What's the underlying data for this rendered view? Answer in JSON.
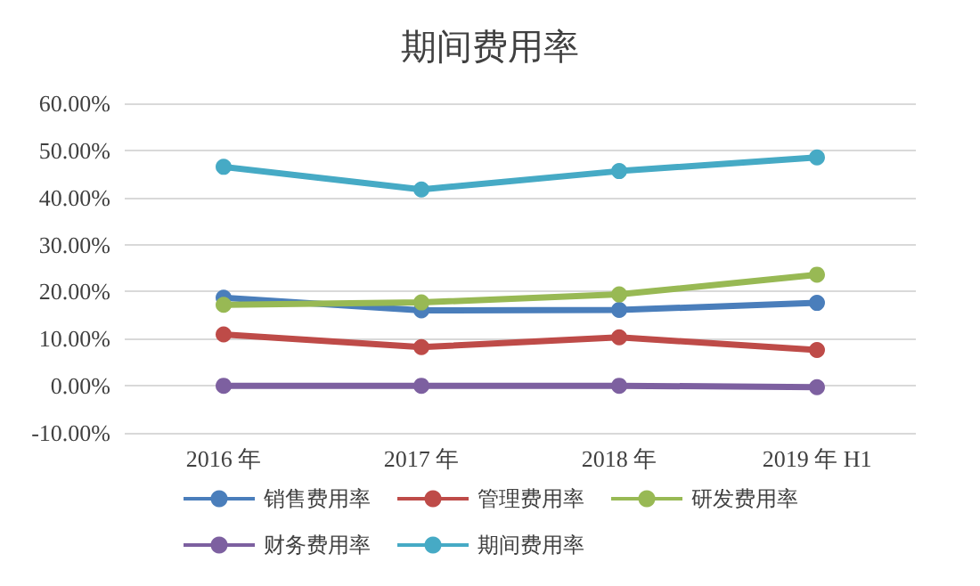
{
  "chart_data": {
    "type": "line",
    "title": "期间费用率",
    "categories": [
      "2016 年",
      "2017 年",
      "2018 年",
      "2019 年 H1"
    ],
    "series": [
      {
        "name": "销售费用率",
        "color": "#4a7ebb",
        "values": [
          18.7,
          16.0,
          16.1,
          17.6
        ]
      },
      {
        "name": "管理费用率",
        "color": "#be4b48",
        "values": [
          10.9,
          8.2,
          10.3,
          7.6
        ]
      },
      {
        "name": "研发费用率",
        "color": "#98b954",
        "values": [
          17.2,
          17.7,
          19.4,
          23.6
        ]
      },
      {
        "name": "财务费用率",
        "color": "#7d60a0",
        "values": [
          0,
          0,
          0,
          -0.3
        ]
      },
      {
        "name": "期间费用率",
        "color": "#46aac5",
        "values": [
          46.5,
          41.7,
          45.6,
          48.5
        ]
      }
    ],
    "ylim": [
      -10,
      60
    ],
    "yticks": [
      {
        "value": -10,
        "label": "-10.00%"
      },
      {
        "value": 0,
        "label": "0.00%"
      },
      {
        "value": 10,
        "label": "10.00%"
      },
      {
        "value": 20,
        "label": "20.00%"
      },
      {
        "value": 30,
        "label": "30.00%"
      },
      {
        "value": 40,
        "label": "40.00%"
      },
      {
        "value": 50,
        "label": "50.00%"
      },
      {
        "value": 60,
        "label": "60.00%"
      }
    ],
    "grid": "y",
    "legend": "bottom",
    "marker": "circle",
    "line_style": "solid"
  }
}
